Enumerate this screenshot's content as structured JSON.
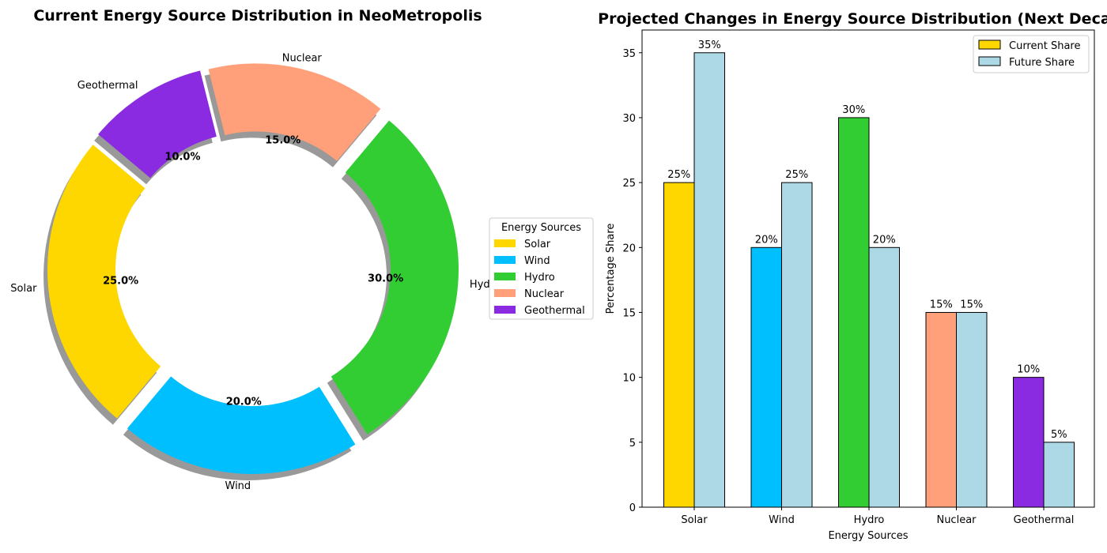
{
  "chart_data": [
    {
      "type": "pie",
      "title": "Current Energy Source Distribution in NeoMetropolis",
      "labels": [
        "Solar",
        "Wind",
        "Hydro",
        "Nuclear",
        "Geothermal"
      ],
      "values": [
        25,
        20,
        30,
        15,
        10
      ],
      "pct_labels": [
        "25.0%",
        "20.0%",
        "30.0%",
        "15.0%",
        "10.0%"
      ],
      "colors": [
        "#FFD700",
        "#00BFFF",
        "#32CD32",
        "#FFA07A",
        "#8A2BE2"
      ],
      "donut": true,
      "shadow": true,
      "legend_title": "Energy Sources",
      "legend_position": "right"
    },
    {
      "type": "bar",
      "title": "Projected Changes in Energy Source Distribution (Next Decade)",
      "categories": [
        "Solar",
        "Wind",
        "Hydro",
        "Nuclear",
        "Geothermal"
      ],
      "series": [
        {
          "name": "Current Share",
          "values": [
            25,
            20,
            30,
            15,
            10
          ],
          "labels": [
            "25%",
            "20%",
            "30%",
            "15%",
            "10%"
          ],
          "colors": [
            "#FFD700",
            "#00BFFF",
            "#32CD32",
            "#FFA07A",
            "#8A2BE2"
          ],
          "legend_color": "#FFD700"
        },
        {
          "name": "Future Share",
          "values": [
            35,
            25,
            20,
            15,
            5
          ],
          "labels": [
            "35%",
            "25%",
            "20%",
            "15%",
            "5%"
          ],
          "colors": [
            "#ADD8E6",
            "#ADD8E6",
            "#ADD8E6",
            "#ADD8E6",
            "#ADD8E6"
          ],
          "legend_color": "#ADD8E6"
        }
      ],
      "xlabel": "Energy Sources",
      "ylabel": "Percentage Share",
      "ylim": [
        0,
        36.75
      ],
      "yticks": [
        "0",
        "5",
        "10",
        "15",
        "20",
        "25",
        "30",
        "35"
      ],
      "legend_position": "top-right"
    }
  ]
}
